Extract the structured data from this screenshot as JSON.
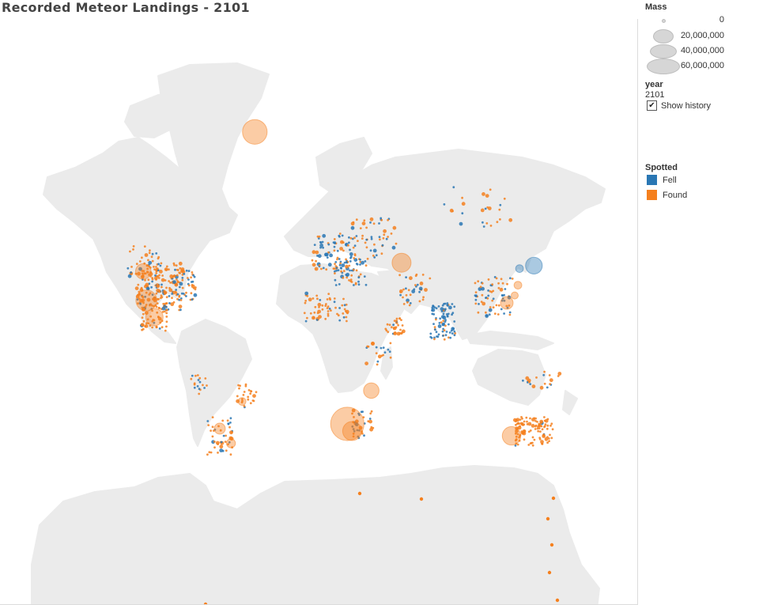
{
  "title": "Recorded Meteor Landings - 2101",
  "legend": {
    "mass_title": "Mass",
    "mass_items": [
      {
        "label": "0",
        "value": 0
      },
      {
        "label": "20,000,000",
        "value": 20000000
      },
      {
        "label": "40,000,000",
        "value": 40000000
      },
      {
        "label": "60,000,000",
        "value": 60000000
      }
    ],
    "year_title": "year",
    "year_value": "2101",
    "show_history_label": "Show history",
    "show_history_checked": true,
    "spotted_title": "Spotted",
    "spotted_items": [
      {
        "label": "Fell",
        "color": "#2a77b4"
      },
      {
        "label": "Found",
        "color": "#f5801e"
      }
    ]
  },
  "colors": {
    "land": "#ebebeb",
    "fell": "#2a77b4",
    "found": "#f5801e"
  },
  "map": {
    "projection": "mercator",
    "landmasses": [
      "Greenland",
      "North America",
      "South America",
      "Europe",
      "Africa",
      "Asia",
      "Australia",
      "Antarctica"
    ]
  },
  "chart_data": {
    "type": "scatter",
    "x_name": "longitude",
    "y_name": "latitude",
    "size_name": "Mass",
    "color_name": "Spotted",
    "large_points": [
      {
        "lon": -40,
        "lat": 74,
        "mass": 30000000,
        "spotted": "Found"
      },
      {
        "lon": -110,
        "lat": 42,
        "mass": 12000000,
        "spotted": "Found"
      },
      {
        "lon": -108,
        "lat": 31,
        "mass": 22000000,
        "spotted": "Found"
      },
      {
        "lon": -103,
        "lat": 24,
        "mass": 15000000,
        "spotted": "Found"
      },
      {
        "lon": 52,
        "lat": 45,
        "mass": 18000000,
        "spotted": "Found"
      },
      {
        "lon": 135,
        "lat": 44,
        "mass": 14000000,
        "spotted": "Fell"
      },
      {
        "lon": 126,
        "lat": 43,
        "mass": 3000000,
        "spotted": "Fell"
      },
      {
        "lon": 18,
        "lat": -25,
        "mass": 55000000,
        "spotted": "Found"
      },
      {
        "lon": 21,
        "lat": -28,
        "mass": 18000000,
        "spotted": "Found"
      },
      {
        "lon": 33,
        "lat": -10,
        "mass": 12000000,
        "spotted": "Found"
      },
      {
        "lon": 118,
        "lat": 30,
        "mass": 8000000,
        "spotted": "Found"
      },
      {
        "lon": 121,
        "lat": -30,
        "mass": 17000000,
        "spotted": "Found"
      },
      {
        "lon": -62,
        "lat": -27,
        "mass": 6000000,
        "spotted": "Found"
      },
      {
        "lon": -55,
        "lat": -33,
        "mass": 4000000,
        "spotted": "Found"
      },
      {
        "lon": -48,
        "lat": -15,
        "mass": 3000000,
        "spotted": "Found"
      },
      {
        "lon": 125,
        "lat": 37,
        "mass": 3000000,
        "spotted": "Found"
      },
      {
        "lon": 123,
        "lat": 33,
        "mass": 2500000,
        "spotted": "Found"
      }
    ]
  }
}
